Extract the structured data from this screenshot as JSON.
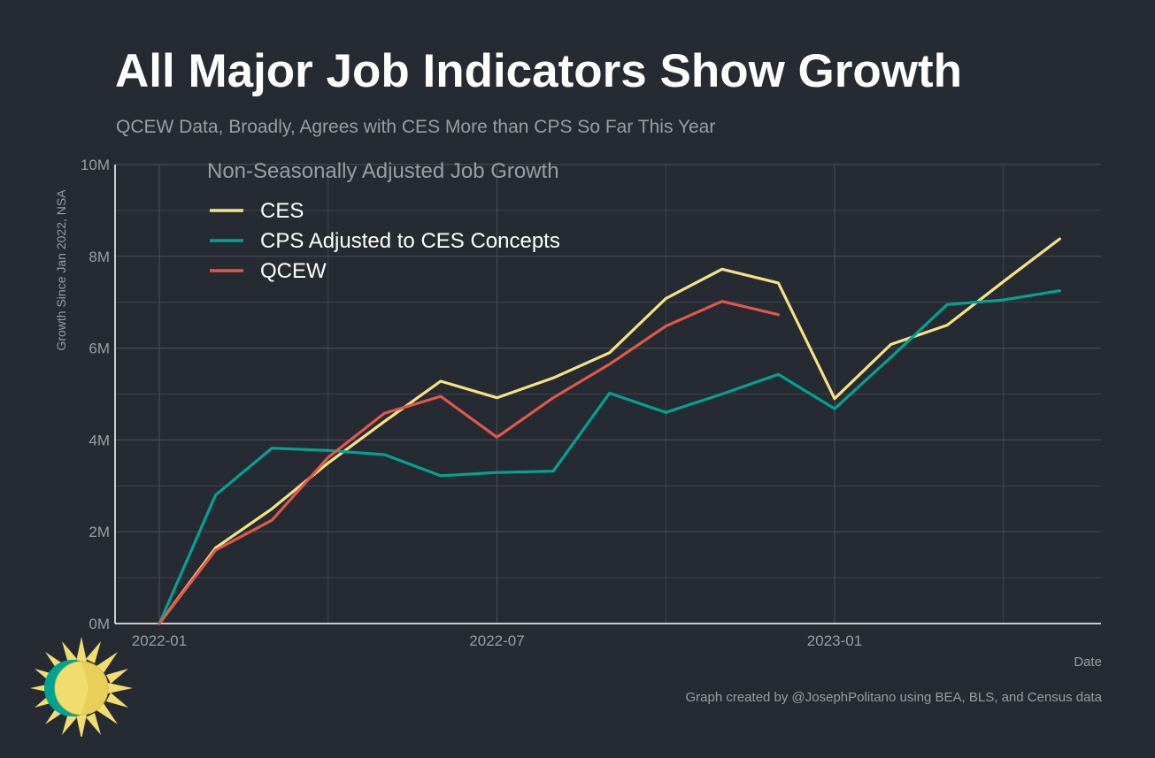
{
  "chart_data": {
    "type": "line",
    "title": "All Major Job Indicators Show Growth",
    "subtitle": "QCEW Data, Broadly, Agrees with CES More than CPS So Far This Year",
    "xlabel": "Date",
    "ylabel": "Growth Since Jan 2022, NSA",
    "legend_title": "Non-Seasonally Adjusted Job Growth",
    "legend_position": "top-left",
    "caption": "Graph created by @JosephPolitano using BEA, BLS, and Census data",
    "x": [
      "2022-01",
      "2022-02",
      "2022-03",
      "2022-04",
      "2022-05",
      "2022-06",
      "2022-07",
      "2022-08",
      "2022-09",
      "2022-10",
      "2022-11",
      "2022-12",
      "2023-01",
      "2023-02",
      "2023-03",
      "2023-04",
      "2023-05"
    ],
    "x_ticks": [
      "2022-01",
      "2022-07",
      "2023-01"
    ],
    "y_ticks": [
      "0M",
      "2M",
      "4M",
      "6M",
      "8M",
      "10M"
    ],
    "ylim": [
      0,
      10
    ],
    "y_unit": "millions",
    "grid": true,
    "series": [
      {
        "name": "CES",
        "color": "#f4e285",
        "values": [
          0,
          1.65,
          2.5,
          3.5,
          4.4,
          5.28,
          4.92,
          5.35,
          5.9,
          7.08,
          7.72,
          7.42,
          4.9,
          6.08,
          6.5,
          7.45,
          8.38
        ]
      },
      {
        "name": "CPS Adjusted to CES Concepts",
        "color": "#00a392",
        "values": [
          0,
          2.8,
          3.82,
          3.77,
          3.68,
          3.22,
          3.29,
          3.32,
          5.02,
          4.6,
          5.0,
          5.43,
          4.68,
          5.8,
          6.95,
          7.05,
          7.25
        ]
      },
      {
        "name": "QCEW",
        "color": "#e0584a",
        "values": [
          0,
          1.6,
          2.25,
          3.62,
          4.58,
          4.95,
          4.06,
          4.92,
          5.65,
          6.48,
          7.02,
          6.73,
          null,
          null,
          null,
          null,
          null
        ]
      }
    ]
  },
  "colors": {
    "background": "#252a33",
    "grid": "#454b55",
    "text_muted": "#9b9ea3",
    "title": "#ffffff"
  }
}
